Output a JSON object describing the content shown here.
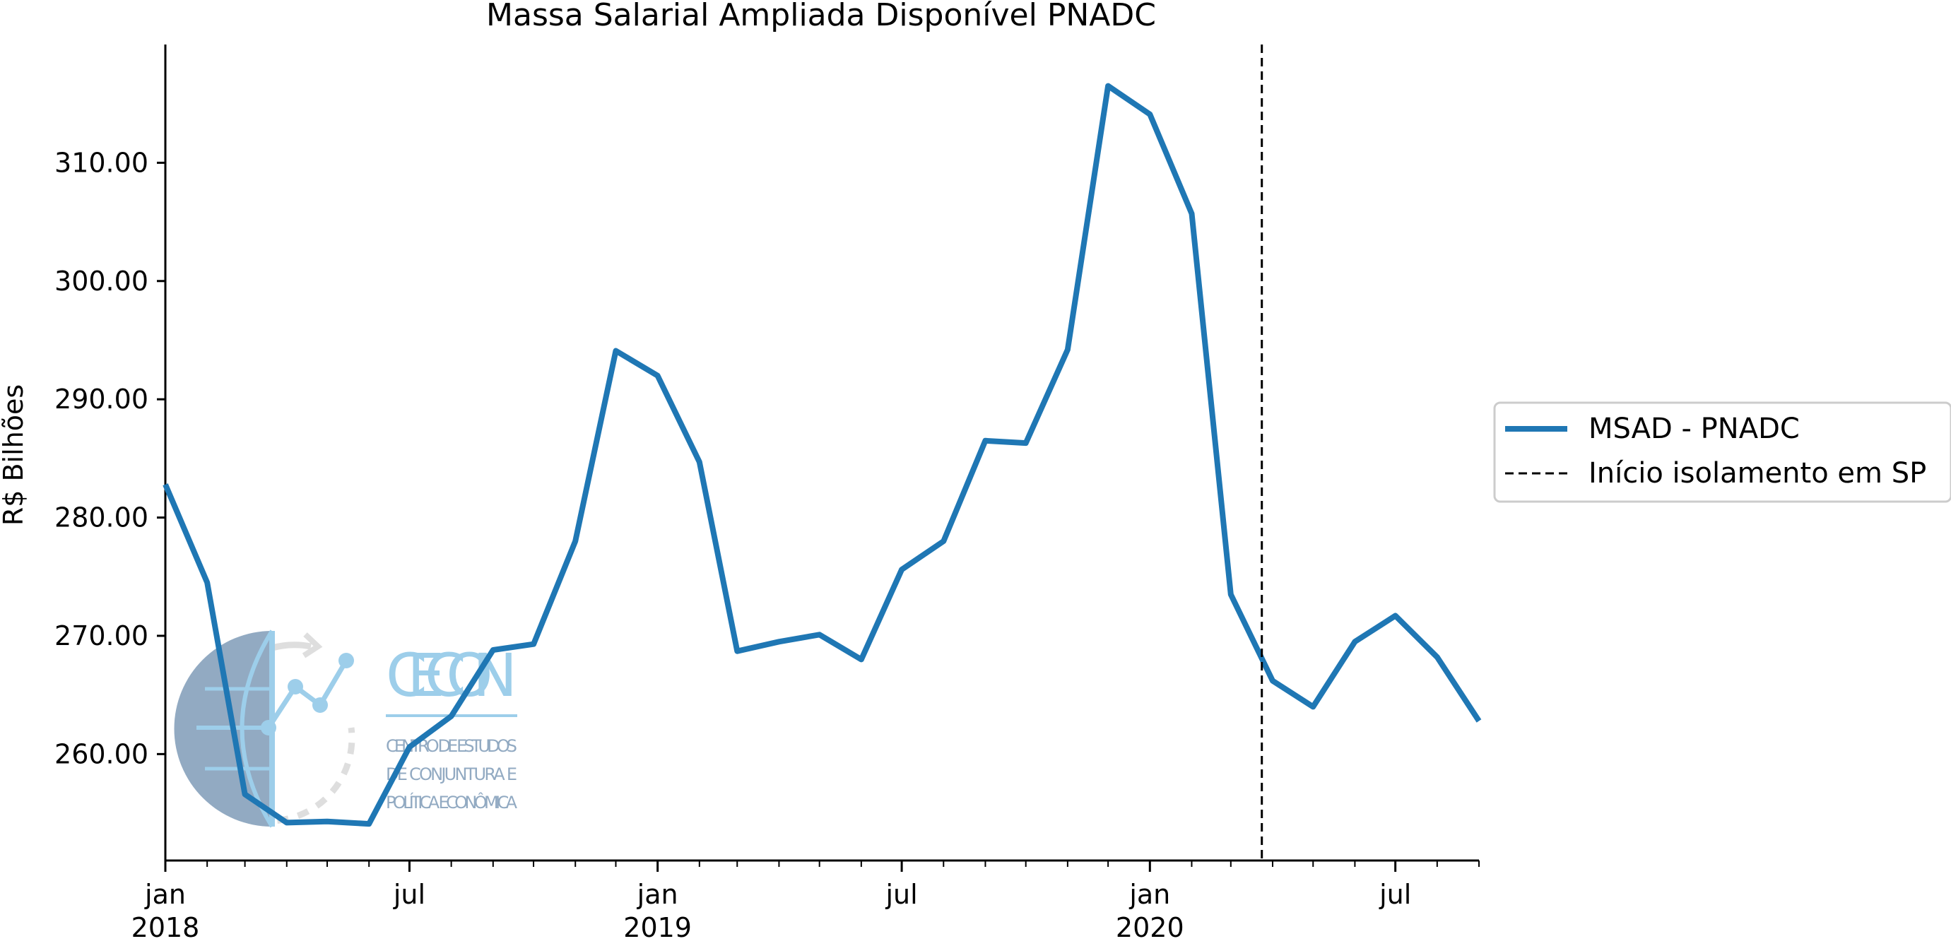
{
  "chart_data": {
    "type": "line",
    "title": "Massa Salarial Ampliada Disponível PNADC",
    "ylabel": "R$ Bilhões",
    "xlabel": "",
    "x_start": "2018-01",
    "x_end": "2020-09",
    "ylim": [
      251.0,
      320.0
    ],
    "y_ticks": [
      260,
      270,
      280,
      290,
      300,
      310
    ],
    "y_tick_labels": [
      "260.00",
      "270.00",
      "280.00",
      "290.00",
      "300.00",
      "310.00"
    ],
    "x_major_ticks": [
      {
        "x": "2018-01",
        "label": "jan",
        "year": "2018"
      },
      {
        "x": "2018-07",
        "label": "jul",
        "year": ""
      },
      {
        "x": "2019-01",
        "label": "jan",
        "year": "2019"
      },
      {
        "x": "2019-07",
        "label": "jul",
        "year": ""
      },
      {
        "x": "2020-01",
        "label": "jan",
        "year": "2020"
      },
      {
        "x": "2020-07",
        "label": "jul",
        "year": ""
      }
    ],
    "series": [
      {
        "name": "MSAD - PNADC",
        "color": "#1f77b4",
        "x": [
          "2018-01",
          "2018-02",
          "2018-03",
          "2018-04",
          "2018-05",
          "2018-06",
          "2018-07",
          "2018-08",
          "2018-09",
          "2018-10",
          "2018-11",
          "2018-12",
          "2019-01",
          "2019-02",
          "2019-03",
          "2019-04",
          "2019-05",
          "2019-06",
          "2019-07",
          "2019-08",
          "2019-09",
          "2019-10",
          "2019-11",
          "2019-12",
          "2020-01",
          "2020-02",
          "2020-03",
          "2020-04",
          "2020-05",
          "2020-06",
          "2020-07",
          "2020-08",
          "2020-09"
        ],
        "values": [
          282.8,
          274.5,
          256.6,
          254.2,
          254.3,
          254.1,
          260.6,
          263.2,
          268.8,
          269.3,
          278.0,
          294.1,
          292.0,
          284.7,
          268.7,
          269.5,
          270.1,
          268.0,
          275.6,
          278.0,
          286.5,
          286.3,
          294.2,
          316.5,
          314.1,
          305.7,
          273.5,
          266.2,
          264.0,
          269.5,
          271.7,
          268.2,
          262.8
        ]
      }
    ],
    "vline": {
      "x": "2020-03-24",
      "name": "Início isolamento em SP",
      "color": "#000000",
      "style": "dashed"
    },
    "legend": {
      "position": "right",
      "entries": [
        "MSAD - PNADC",
        "Início isolamento em SP"
      ]
    },
    "grid": false
  },
  "watermark": {
    "text": "CECON",
    "subtitle_lines": [
      "CENTRO DE ESTUDOS",
      "DE CONJUNTURA E",
      "POLÍTICA ECONÔMICA"
    ]
  }
}
